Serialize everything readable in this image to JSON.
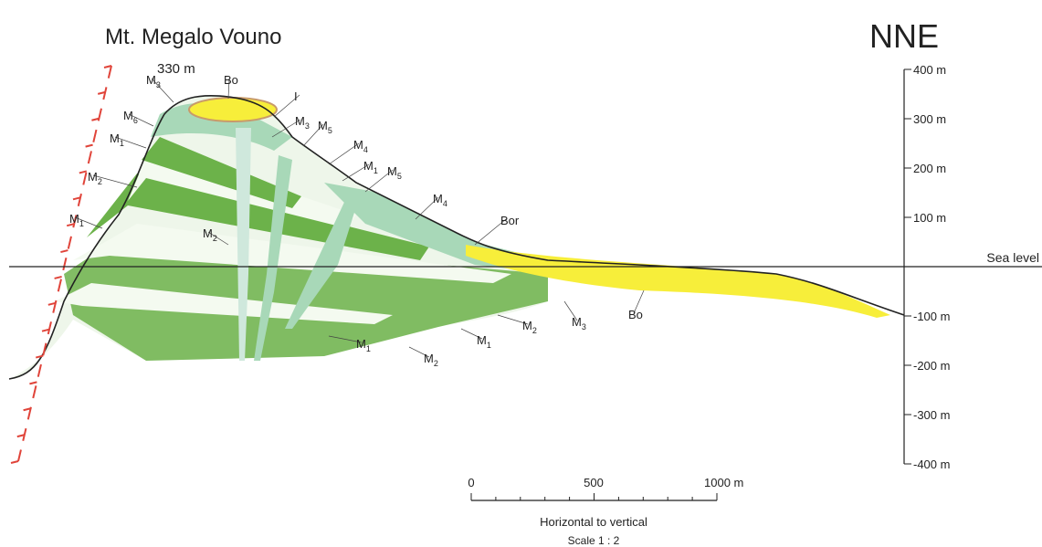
{
  "title": "Mt. Megalo Vouno",
  "summit_elevation": "330 m",
  "direction": "NNE",
  "vertical_scale": {
    "labels": [
      "400 m",
      "300 m",
      "200 m",
      "100 m",
      "-100 m",
      "-200 m",
      "-300 m",
      "-400 m"
    ],
    "sea_level": "Sea level"
  },
  "horizontal_scale": {
    "labels": [
      "0",
      "500",
      "1000 m"
    ],
    "caption": "Horizontal to vertical",
    "scale": "Scale 1 : 2"
  },
  "units": [
    {
      "symbol": "M",
      "sub": "3"
    },
    {
      "symbol": "Bo"
    },
    {
      "symbol": "I"
    },
    {
      "symbol": "M",
      "sub": "6"
    },
    {
      "symbol": "M",
      "sub": "1"
    },
    {
      "symbol": "M",
      "sub": "3"
    },
    {
      "symbol": "M",
      "sub": "5"
    },
    {
      "symbol": "M",
      "sub": "4"
    },
    {
      "symbol": "M",
      "sub": "1"
    },
    {
      "symbol": "M",
      "sub": "5"
    },
    {
      "symbol": "M",
      "sub": "2"
    },
    {
      "symbol": "M",
      "sub": "4"
    },
    {
      "symbol": "Bor"
    },
    {
      "symbol": "M",
      "sub": "1"
    },
    {
      "symbol": "M",
      "sub": "2"
    },
    {
      "symbol": "M",
      "sub": "3"
    },
    {
      "symbol": "Bo"
    },
    {
      "symbol": "M",
      "sub": "2"
    },
    {
      "symbol": "M",
      "sub": "1"
    },
    {
      "symbol": "M",
      "sub": "1"
    },
    {
      "symbol": "M",
      "sub": "2"
    }
  ]
}
